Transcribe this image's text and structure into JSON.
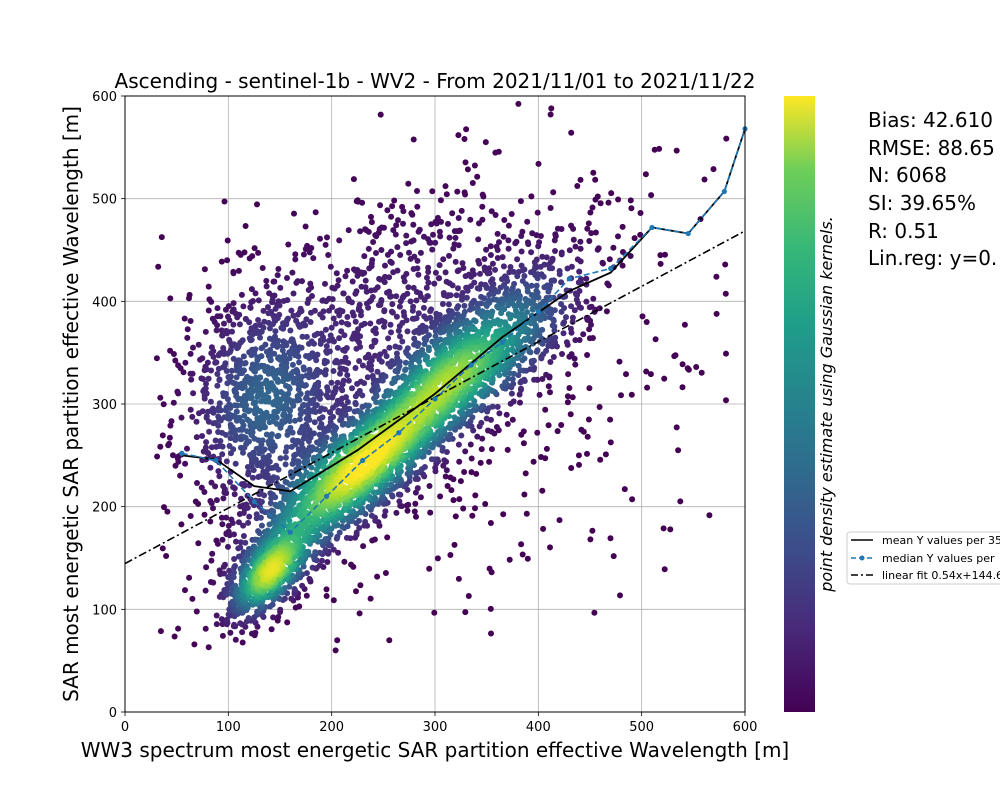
{
  "chart_data": {
    "type": "scatter",
    "title": "Ascending - sentinel-1b - WV2 - From 2021/11/01 to 2021/11/22",
    "xlabel": "WW3 spectrum most energetic SAR partition effective Wavelength [m]",
    "ylabel": "SAR most energetic SAR partition effective Wavelength [m]",
    "xlim": [
      0,
      600
    ],
    "ylim": [
      0,
      600
    ],
    "xticks": [
      "0",
      "100",
      "200",
      "300",
      "400",
      "500",
      "600"
    ],
    "yticks": [
      "0",
      "100",
      "200",
      "300",
      "400",
      "500",
      "600"
    ],
    "grid": true,
    "colormap": "viridis",
    "colorbar_label": "point density estimate using Gaussian kernels.",
    "stats": [
      "Bias: 42.610",
      "RMSE: 88.65",
      "N: 6068",
      "SI: 39.65%",
      "R: 0.51",
      "Lin.reg: y=0."
    ],
    "legend": {
      "placement": "right, outside plot",
      "entries": [
        {
          "label": "mean Y values per 35",
          "style": "solid-black"
        },
        {
          "label": "median Y values per",
          "style": "dashed-blue-dots"
        },
        {
          "label": "linear fit 0.54x+144.6",
          "style": "dashdot-black"
        }
      ]
    },
    "linear_fit": {
      "slope": 0.54,
      "intercept": 144.6,
      "x": [
        0,
        600
      ]
    },
    "series": [
      {
        "name": "mean Y values per 35",
        "x": [
          55,
          88,
          125,
          160,
          225,
          300,
          365,
          430,
          470,
          510,
          545,
          580,
          600
        ],
        "y": [
          250,
          246,
          220,
          215,
          255,
          310,
          365,
          410,
          428,
          472,
          466,
          507,
          568
        ]
      },
      {
        "name": "median Y values per",
        "x": [
          55,
          88,
          125,
          160,
          195,
          230,
          265,
          300,
          335,
          365,
          400,
          430,
          470,
          510,
          545,
          580,
          600
        ],
        "y": [
          252,
          245,
          205,
          175,
          210,
          245,
          272,
          305,
          338,
          360,
          390,
          422,
          432,
          472,
          466,
          507,
          568
        ]
      }
    ],
    "density_clusters": [
      {
        "cx": 230,
        "cy": 240,
        "sx": 55,
        "sy": 50,
        "rho": 0.82,
        "n": 1800,
        "peak": 1.0
      },
      {
        "cx": 140,
        "cy": 135,
        "sx": 22,
        "sy": 24,
        "rho": 0.6,
        "n": 650,
        "peak": 0.85
      },
      {
        "cx": 320,
        "cy": 330,
        "sx": 40,
        "sy": 35,
        "rho": 0.55,
        "n": 700,
        "peak": 0.55
      },
      {
        "cx": 135,
        "cy": 300,
        "sx": 40,
        "sy": 55,
        "rho": 0.1,
        "n": 900,
        "peak": 0.3
      },
      {
        "cx": 260,
        "cy": 380,
        "sx": 90,
        "sy": 70,
        "rho": 0.3,
        "n": 800,
        "peak": 0.1
      },
      {
        "cx": 380,
        "cy": 380,
        "sx": 40,
        "sy": 40,
        "rho": 0.5,
        "n": 400,
        "peak": 0.25
      },
      {
        "cx": 300,
        "cy": 300,
        "sx": 150,
        "sy": 120,
        "rho": 0.4,
        "n": 500,
        "peak": 0.0
      }
    ]
  }
}
